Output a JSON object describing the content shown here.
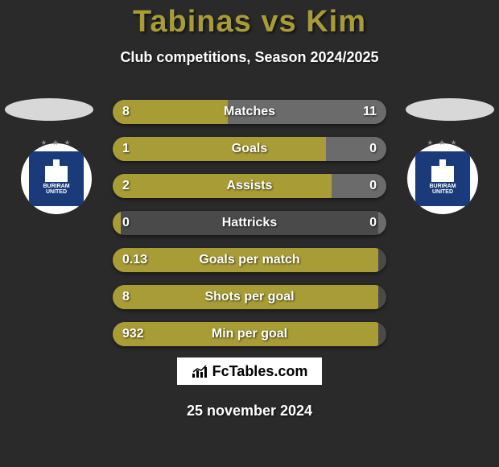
{
  "title": {
    "player1": "Tabinas",
    "vs": "vs",
    "player2": "Kim",
    "color": "#a89c36",
    "fontsize": 38
  },
  "subtitle": "Club competitions, Season 2024/2025",
  "ovals": {
    "left_color": "#d8d8d8",
    "right_color": "#d8d8d8"
  },
  "club": {
    "badge_bg": "#1a3a7a",
    "name_top": "BURIRAM",
    "name_bottom": "UNITED"
  },
  "colors": {
    "bar_left": "#a89c36",
    "bar_right": "#6b6b6b",
    "bar_track": "#4a4a4a",
    "background": "#2a2a2a",
    "text": "#ffffff"
  },
  "bars": [
    {
      "label": "Matches",
      "left_val": "8",
      "right_val": "11",
      "left_pct": 42,
      "right_pct": 58
    },
    {
      "label": "Goals",
      "left_val": "1",
      "right_val": "0",
      "left_pct": 78,
      "right_pct": 22
    },
    {
      "label": "Assists",
      "left_val": "2",
      "right_val": "0",
      "left_pct": 80,
      "right_pct": 20
    },
    {
      "label": "Hattricks",
      "left_val": "0",
      "right_val": "0",
      "left_pct": 3,
      "right_pct": 3
    },
    {
      "label": "Goals per match",
      "left_val": "0.13",
      "right_val": "",
      "left_pct": 97,
      "right_pct": 0
    },
    {
      "label": "Shots per goal",
      "left_val": "8",
      "right_val": "",
      "left_pct": 97,
      "right_pct": 0
    },
    {
      "label": "Min per goal",
      "left_val": "932",
      "right_val": "",
      "left_pct": 97,
      "right_pct": 0
    }
  ],
  "brand": "FcTables.com",
  "date": "25 november 2024"
}
